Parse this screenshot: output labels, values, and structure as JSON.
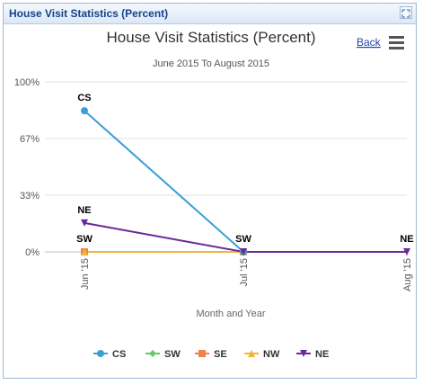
{
  "panel": {
    "title": "House Visit Statistics (Percent)",
    "expand_icon": "expand-icon"
  },
  "toolbar": {
    "back_label": "Back",
    "menu_icon": "hamburger-menu-icon"
  },
  "chart_data": {
    "type": "line",
    "title": "House Visit Statistics (Percent)",
    "subtitle": "June 2015 To August 2015",
    "xlabel": "Month and Year",
    "ylabel": "",
    "categories": [
      "Jun '15",
      "Jul '15",
      "Aug '15"
    ],
    "y_ticks": [
      "0%",
      "33%",
      "67%",
      "100%"
    ],
    "ylim": [
      0,
      100
    ],
    "grid": true,
    "legend_position": "bottom",
    "series": [
      {
        "name": "CS",
        "color": "#3a9fd6",
        "marker": "circle",
        "values": [
          83,
          0,
          null
        ]
      },
      {
        "name": "SW",
        "color": "#66cc66",
        "marker": "diamond",
        "values": [
          0,
          0,
          null
        ]
      },
      {
        "name": "SE",
        "color": "#f0804c",
        "marker": "square",
        "values": [
          0,
          0,
          null
        ]
      },
      {
        "name": "NW",
        "color": "#f0b43c",
        "marker": "triangle",
        "values": [
          0,
          0,
          null
        ]
      },
      {
        "name": "NE",
        "color": "#6a2a9a",
        "marker": "triangle-down",
        "values": [
          17,
          0,
          0
        ]
      }
    ],
    "data_labels": [
      {
        "text": "CS",
        "series": "CS",
        "index": 0
      },
      {
        "text": "NE",
        "series": "NE",
        "index": 0
      },
      {
        "text": "SW",
        "series": "SW",
        "index": 0
      },
      {
        "text": "SW",
        "series": "SW",
        "index": 1
      },
      {
        "text": "NE",
        "series": "NE",
        "index": 2
      }
    ]
  }
}
